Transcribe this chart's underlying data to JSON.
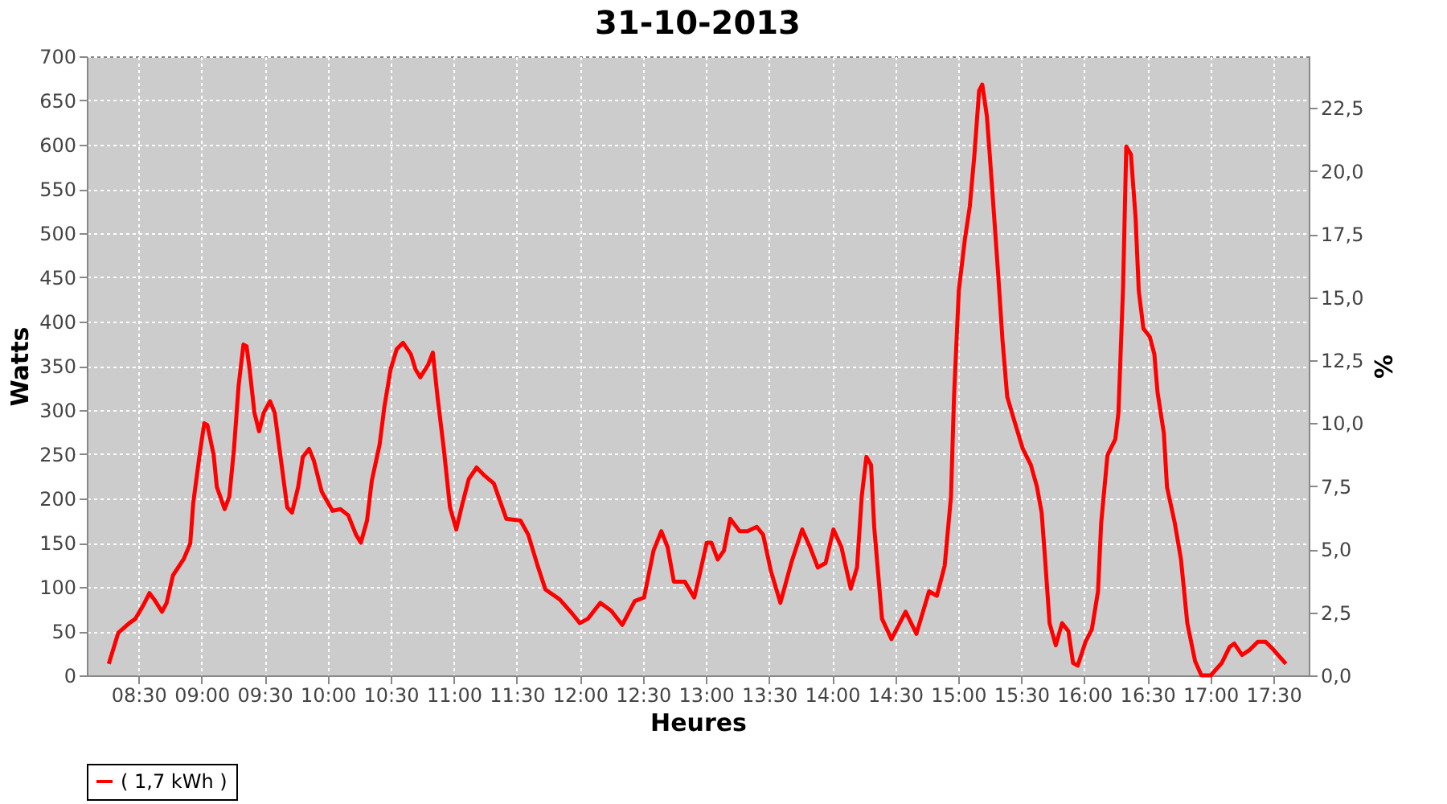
{
  "chart_data": {
    "type": "line",
    "title": "31-10-2013",
    "xlabel": "Heures",
    "ylabel": "Watts",
    "y2label": "%",
    "xlim": [
      8.09,
      17.78
    ],
    "xticks": [
      {
        "value": 8.5,
        "label": "08:30"
      },
      {
        "value": 9,
        "label": "09:00"
      },
      {
        "value": 9.5,
        "label": "09:30"
      },
      {
        "value": 10,
        "label": "10:00"
      },
      {
        "value": 10.5,
        "label": "10:30"
      },
      {
        "value": 11,
        "label": "11:00"
      },
      {
        "value": 11.5,
        "label": "11:30"
      },
      {
        "value": 12,
        "label": "12:00"
      },
      {
        "value": 12.5,
        "label": "12:30"
      },
      {
        "value": 13,
        "label": "13:00"
      },
      {
        "value": 13.5,
        "label": "13:30"
      },
      {
        "value": 14,
        "label": "14:00"
      },
      {
        "value": 14.5,
        "label": "14:30"
      },
      {
        "value": 15,
        "label": "15:00"
      },
      {
        "value": 15.5,
        "label": "15:30"
      },
      {
        "value": 16,
        "label": "16:00"
      },
      {
        "value": 16.5,
        "label": "16:30"
      },
      {
        "value": 17,
        "label": "17:00"
      },
      {
        "value": 17.5,
        "label": "17:30"
      }
    ],
    "ylim": [
      0,
      700
    ],
    "yticks": [
      0,
      50,
      100,
      150,
      200,
      250,
      300,
      350,
      400,
      450,
      500,
      550,
      600,
      650,
      700
    ],
    "y2lim": [
      0,
      24.55
    ],
    "y2ticks": [
      {
        "value": 0,
        "label": "0,0"
      },
      {
        "value": 2.5,
        "label": "2,5"
      },
      {
        "value": 5,
        "label": "5,0"
      },
      {
        "value": 7.5,
        "label": "7,5"
      },
      {
        "value": 10,
        "label": "10,0"
      },
      {
        "value": 12.5,
        "label": "12,5"
      },
      {
        "value": 15,
        "label": "15,0"
      },
      {
        "value": 17.5,
        "label": "17,5"
      },
      {
        "value": 20,
        "label": "20,0"
      },
      {
        "value": 22.5,
        "label": "22,5"
      }
    ],
    "grid": true,
    "legend": "bottom",
    "line_style": "solid",
    "series": [
      {
        "name": "( 1,7 kWh )",
        "color": "#ff0000",
        "x": [
          8.264,
          8.339,
          8.426,
          8.475,
          8.537,
          8.587,
          8.624,
          8.686,
          8.723,
          8.773,
          8.86,
          8.91,
          8.934,
          8.984,
          9.021,
          9.046,
          9.096,
          9.121,
          9.183,
          9.22,
          9.257,
          9.294,
          9.332,
          9.357,
          9.381,
          9.419,
          9.456,
          9.493,
          9.543,
          9.58,
          9.63,
          9.679,
          9.717,
          9.766,
          9.803,
          9.853,
          9.89,
          9.952,
          10.039,
          10.101,
          10.163,
          10.225,
          10.263,
          10.312,
          10.35,
          10.412,
          10.449,
          10.499,
          10.548,
          10.598,
          10.66,
          10.697,
          10.734,
          10.796,
          10.834,
          10.871,
          10.921,
          10.97,
          11.02,
          11.07,
          11.119,
          11.181,
          11.243,
          11.318,
          11.355,
          11.417,
          11.529,
          11.591,
          11.665,
          11.727,
          11.839,
          11.938,
          12.0,
          12.063,
          12.162,
          12.249,
          12.336,
          12.435,
          12.509,
          12.584,
          12.646,
          12.696,
          12.745,
          12.832,
          12.907,
          12.956,
          13.006,
          13.043,
          13.093,
          13.142,
          13.192,
          13.267,
          13.329,
          13.403,
          13.453,
          13.515,
          13.59,
          13.676,
          13.763,
          13.825,
          13.887,
          13.949,
          14.011,
          14.074,
          14.148,
          14.198,
          14.235,
          14.272,
          14.309,
          14.334,
          14.396,
          14.471,
          14.583,
          14.669,
          14.769,
          14.831,
          14.893,
          14.943,
          14.967,
          15.005,
          15.054,
          15.092,
          15.129,
          15.166,
          15.191,
          15.228,
          15.265,
          15.315,
          15.352,
          15.389,
          15.451,
          15.513,
          15.576,
          15.625,
          15.662,
          15.687,
          15.725,
          15.774,
          15.824,
          15.874,
          15.911,
          15.948,
          16.01,
          16.06,
          16.109,
          16.134,
          16.184,
          16.246,
          16.271,
          16.308,
          16.333,
          16.37,
          16.407,
          16.432,
          16.469,
          16.519,
          16.556,
          16.581,
          16.631,
          16.656,
          16.718,
          16.767,
          16.817,
          16.879,
          16.929,
          17.003,
          17.09,
          17.152,
          17.189,
          17.251,
          17.313,
          17.376,
          17.438,
          17.5,
          17.599
        ],
        "values": [
          13,
          48,
          59,
          64,
          79,
          93,
          86,
          72,
          82,
          113,
          132,
          149,
          195,
          249,
          285,
          283,
          249,
          213,
          188,
          202,
          256,
          328,
          374,
          372,
          346,
          297,
          276,
          297,
          310,
          297,
          243,
          190,
          184,
          213,
          247,
          256,
          243,
          208,
          186,
          188,
          181,
          159,
          150,
          175,
          220,
          261,
          303,
          346,
          369,
          376,
          363,
          346,
          337,
          351,
          365,
          315,
          256,
          190,
          165,
          195,
          222,
          235,
          226,
          217,
          202,
          177,
          175,
          159,
          124,
          97,
          86,
          70,
          59,
          64,
          82,
          73,
          57,
          84,
          88,
          141,
          163,
          145,
          106,
          106,
          88,
          118,
          150,
          150,
          131,
          141,
          177,
          163,
          163,
          168,
          159,
          118,
          82,
          127,
          165,
          145,
          122,
          127,
          165,
          145,
          98,
          122,
          202,
          247,
          238,
          168,
          64,
          41,
          72,
          47,
          95,
          90,
          124,
          202,
          315,
          435,
          494,
          530,
          589,
          661,
          668,
          632,
          560,
          458,
          378,
          315,
          285,
          256,
          238,
          213,
          184,
          136,
          59,
          34,
          59,
          50,
          14,
          11,
          38,
          52,
          95,
          172,
          249,
          267,
          297,
          440,
          598,
          589,
          517,
          435,
          392,
          383,
          363,
          320,
          274,
          213,
          172,
          131,
          59,
          16,
          0,
          0,
          14,
          32,
          36,
          23,
          29,
          38,
          38,
          29,
          13
        ]
      }
    ]
  }
}
